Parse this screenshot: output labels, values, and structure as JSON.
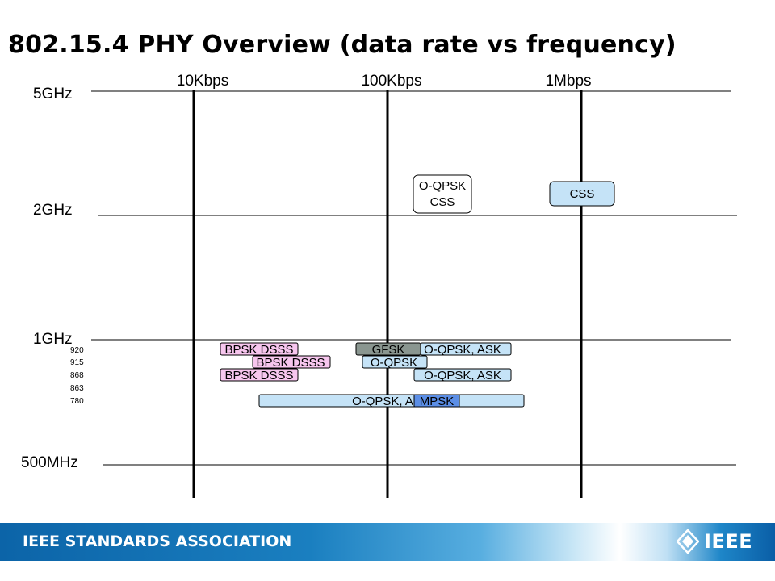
{
  "title": "802.15.4 PHY Overview (data rate vs frequency)",
  "rate_labels": [
    "10Kbps",
    "100Kbps",
    "1Mbps"
  ],
  "freq_labels": [
    "5GHz",
    "2GHz",
    "1GHz",
    "500MHz"
  ],
  "band_labels": [
    "920",
    "915",
    "868",
    "863",
    "780"
  ],
  "phy_boxes": [
    {
      "text": [
        "O-QPSK",
        "CSS"
      ],
      "color": "#ffffff"
    },
    {
      "text": [
        "CSS"
      ],
      "color": "#c5e3f7"
    },
    {
      "text": [
        "BPSK DSSS"
      ],
      "color": "#f7c6ee"
    },
    {
      "text": [
        "GFSK"
      ],
      "color": "#8a9690"
    },
    {
      "text": [
        "O-QPSK, ASK"
      ],
      "color": "#c5e3f7"
    },
    {
      "text": [
        "BPSK DSSS"
      ],
      "color": "#f7c6ee"
    },
    {
      "text": [
        "O-QPSK"
      ],
      "color": "#c5e3f7"
    },
    {
      "text": [
        "BPSK DSSS"
      ],
      "color": "#f7c6ee"
    },
    {
      "text": [
        "O-QPSK, ASK"
      ],
      "color": "#c5e3f7"
    },
    {
      "text": [
        "O-QPSK, A"
      ],
      "color": "#c5e3f7"
    },
    {
      "text": [
        "MPSK"
      ],
      "color": "#5b8ee6"
    }
  ],
  "footer": {
    "org": "IEEE STANDARDS ASSOCIATION",
    "logo": "IEEE"
  }
}
